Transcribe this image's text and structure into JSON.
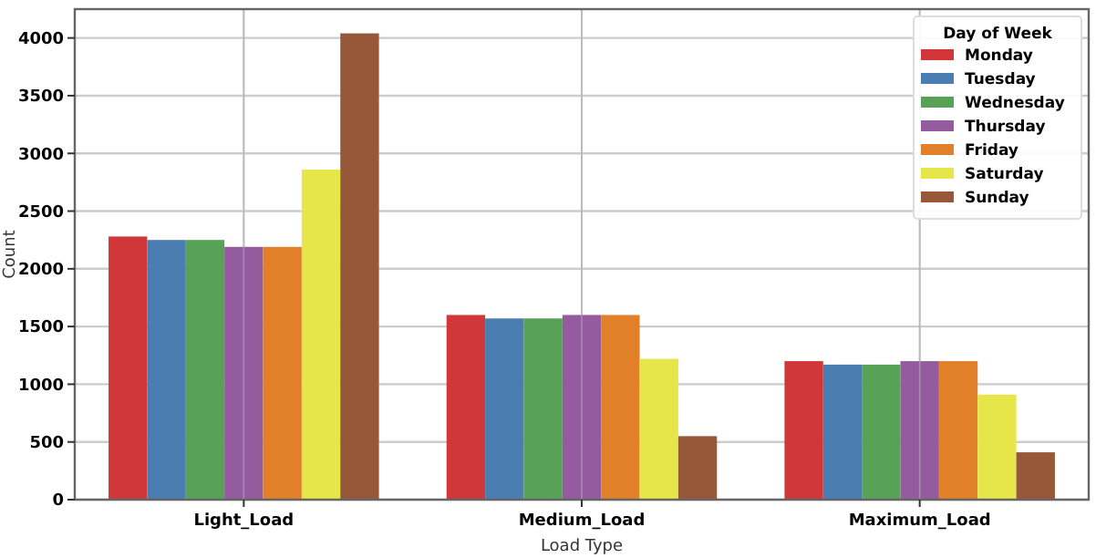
{
  "chart_data": {
    "type": "bar",
    "xlabel": "Load Type",
    "ylabel": "Count",
    "legend_title": "Day of Week",
    "categories": [
      "Light_Load",
      "Medium_Load",
      "Maximum_Load"
    ],
    "series": [
      {
        "name": "Monday",
        "color": "#d13639",
        "values": [
          2280,
          1600,
          1200
        ]
      },
      {
        "name": "Tuesday",
        "color": "#4a7eb0",
        "values": [
          2250,
          1570,
          1170
        ]
      },
      {
        "name": "Wednesday",
        "color": "#58a257",
        "values": [
          2250,
          1570,
          1170
        ]
      },
      {
        "name": "Thursday",
        "color": "#945b9e",
        "values": [
          2190,
          1600,
          1200
        ]
      },
      {
        "name": "Friday",
        "color": "#e2802a",
        "values": [
          2190,
          1600,
          1200
        ]
      },
      {
        "name": "Saturday",
        "color": "#e6e64a",
        "values": [
          2860,
          1220,
          910
        ]
      },
      {
        "name": "Sunday",
        "color": "#965838",
        "values": [
          4040,
          550,
          410
        ]
      }
    ],
    "ylim": [
      0,
      4250
    ],
    "yticks": [
      0,
      500,
      1000,
      1500,
      2000,
      2500,
      3000,
      3500,
      4000
    ],
    "grid": true,
    "legend": "top right"
  }
}
